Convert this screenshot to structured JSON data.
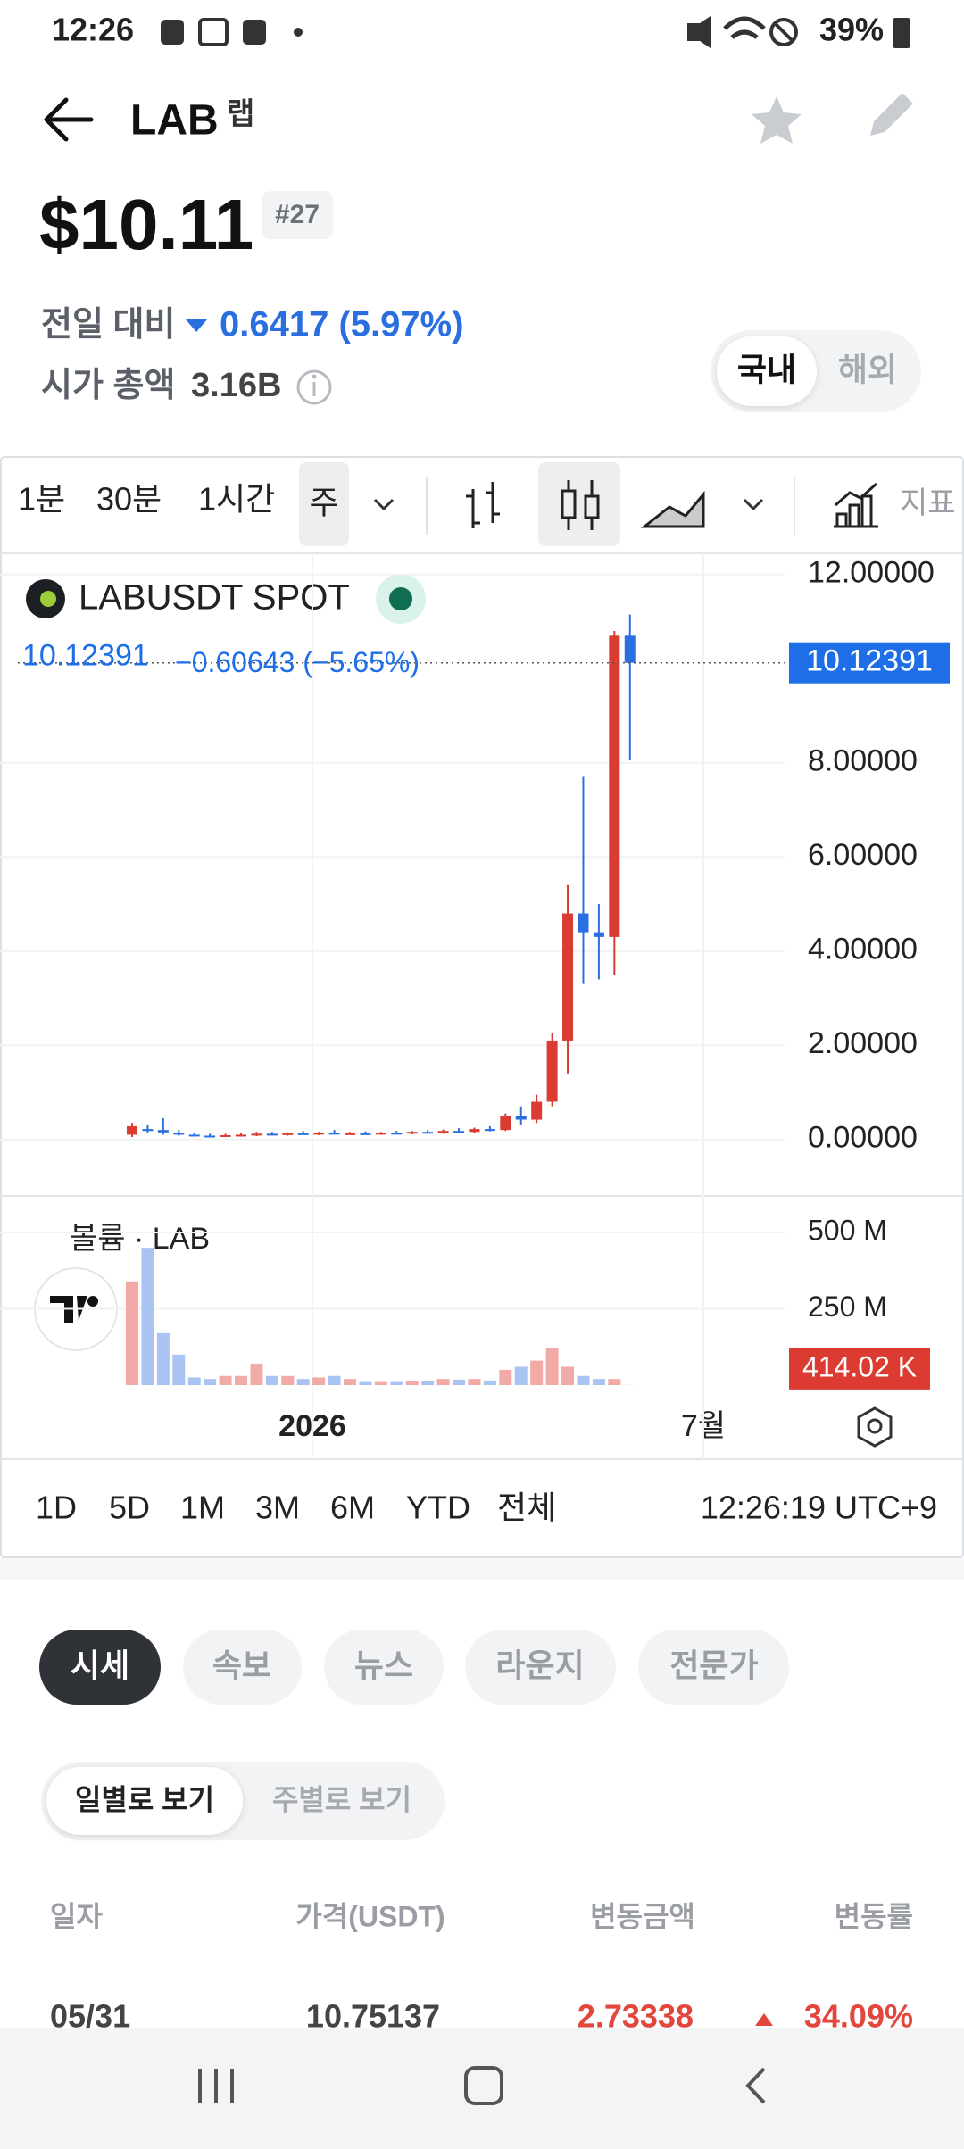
{
  "status_bar": {
    "time": "12:26",
    "battery": "39%"
  },
  "header": {
    "symbol": "LAB",
    "name": "랩"
  },
  "price": {
    "value": "$10.11",
    "rank": "#27",
    "change_label": "전일 대비",
    "change": "0.6417 (5.97%)",
    "market_cap_label": "시가 총액",
    "market_cap": "3.16B"
  },
  "market_toggle": [
    "국내",
    "해외"
  ],
  "toolbar": {
    "intervals": [
      "1분",
      "30분",
      "1시간",
      "주"
    ],
    "indicators": "지표"
  },
  "chart_data": {
    "type": "candlestick",
    "symbol": "LABUSDT SPOT",
    "last_price": 10.12391,
    "last_change": "−0.60643 (−5.65%)",
    "up_color": "#db3b30",
    "down_color": "#2a6fe0",
    "open": [
      0.1,
      0.22,
      0.2,
      0.14,
      0.1,
      0.08,
      0.07,
      0.09,
      0.1,
      0.12,
      0.1,
      0.13,
      0.12,
      0.14,
      0.12,
      0.13,
      0.12,
      0.14,
      0.13,
      0.16,
      0.15,
      0.18,
      0.16,
      0.22,
      0.2,
      0.5,
      0.42,
      0.8,
      2.1,
      4.8,
      4.4,
      4.3,
      10.7
    ],
    "high": [
      0.35,
      0.3,
      0.45,
      0.2,
      0.14,
      0.12,
      0.12,
      0.13,
      0.16,
      0.16,
      0.15,
      0.18,
      0.16,
      0.2,
      0.16,
      0.17,
      0.16,
      0.18,
      0.18,
      0.2,
      0.21,
      0.24,
      0.25,
      0.28,
      0.55,
      0.7,
      0.95,
      2.25,
      5.4,
      7.7,
      5.0,
      10.8,
      11.15
    ],
    "low": [
      0.05,
      0.15,
      0.1,
      0.08,
      0.06,
      0.05,
      0.05,
      0.06,
      0.07,
      0.09,
      0.08,
      0.1,
      0.09,
      0.11,
      0.1,
      0.1,
      0.1,
      0.11,
      0.11,
      0.13,
      0.12,
      0.14,
      0.13,
      0.17,
      0.18,
      0.3,
      0.35,
      0.7,
      1.4,
      3.3,
      3.4,
      3.5,
      8.05
    ],
    "close": [
      0.28,
      0.18,
      0.15,
      0.1,
      0.08,
      0.07,
      0.09,
      0.1,
      0.12,
      0.1,
      0.13,
      0.12,
      0.14,
      0.12,
      0.13,
      0.12,
      0.14,
      0.13,
      0.16,
      0.15,
      0.18,
      0.16,
      0.22,
      0.2,
      0.5,
      0.42,
      0.8,
      2.1,
      4.8,
      4.4,
      4.3,
      10.7,
      10.12391
    ],
    "ylim": [
      -1.2,
      12.45
    ],
    "yticks": [
      {
        "value": 12,
        "label": "12.00000"
      },
      {
        "value": 8,
        "label": "8.00000"
      },
      {
        "value": 6,
        "label": "6.00000"
      },
      {
        "value": 4,
        "label": "4.00000"
      },
      {
        "value": 2,
        "label": "2.00000"
      },
      {
        "value": 0,
        "label": "0.00000"
      }
    ],
    "volume": {
      "name": "볼륨 · LAB",
      "values": [
        340,
        450,
        170,
        100,
        25,
        20,
        30,
        30,
        70,
        30,
        30,
        20,
        25,
        30,
        20,
        10,
        10,
        10,
        12,
        12,
        20,
        18,
        20,
        15,
        50,
        60,
        80,
        120,
        60,
        30,
        20,
        20,
        0.41402
      ],
      "value_labels": [
        null,
        null,
        null,
        null,
        null,
        null,
        null,
        null,
        null,
        null,
        null,
        null,
        null,
        null,
        null,
        null,
        null,
        null,
        null,
        null,
        null,
        null,
        null,
        null,
        null,
        null,
        null,
        null,
        null,
        null,
        null,
        null,
        "414.02 K"
      ],
      "ylim": [
        0,
        620
      ],
      "yticks": [
        {
          "value": 500,
          "label": "500 M"
        },
        {
          "value": 250,
          "label": "250 M"
        }
      ],
      "up_color": "#f2aaa6",
      "down_color": "#a9c3f2"
    },
    "x_labels": [
      "2026",
      "7월"
    ]
  },
  "ranges": [
    "1D",
    "5D",
    "1M",
    "3M",
    "6M",
    "YTD",
    "전체"
  ],
  "clock": "12:26:19 UTC+9",
  "tabs": [
    "시세",
    "속보",
    "뉴스",
    "라운지",
    "전문가"
  ],
  "view_toggle": [
    "일별로 보기",
    "주별로 보기"
  ],
  "table": {
    "header": [
      "일자",
      "가격(USDT)",
      "변동금액",
      "변동률"
    ],
    "rows": [
      [
        "05/31",
        "10.75137",
        "2.73338",
        "34.09%"
      ]
    ]
  }
}
